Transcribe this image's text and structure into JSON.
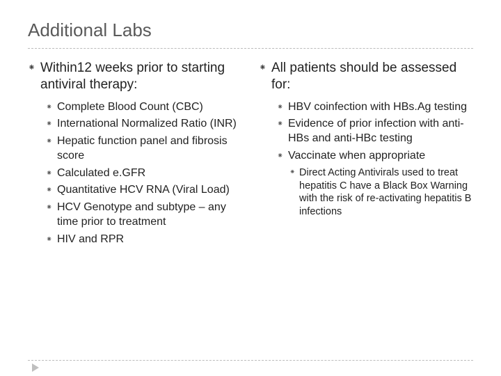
{
  "title": "Additional Labs",
  "bullet_glyph": "⁕",
  "columns": {
    "left": {
      "lead": "Within12 weeks prior to starting antiviral therapy:",
      "items": [
        "Complete Blood Count (CBC)",
        "International Normalized Ratio (INR)",
        "Hepatic function panel and fibrosis score",
        "Calculated e.GFR",
        "Quantitative HCV RNA (Viral Load)",
        "HCV Genotype and subtype – any time prior to treatment",
        "HIV and RPR"
      ]
    },
    "right": {
      "lead": "All patients should be assessed for:",
      "items": [
        "HBV coinfection with HBs.Ag testing",
        "Evidence of prior infection with anti-HBs and anti-HBc testing",
        "Vaccinate when appropriate"
      ],
      "subitems": [
        "Direct Acting Antivirals used to treat hepatitis C have a Black Box Warning with the risk of re-activating hepatitis B infections"
      ]
    }
  },
  "colors": {
    "title": "#5a5a5a",
    "text": "#222222",
    "dash": "#bbbbbb",
    "arrow": "#bfbfbf",
    "background": "#ffffff"
  },
  "fonts": {
    "title_size": 26,
    "lead_size": 19,
    "item_size": 16,
    "subitem_size": 14.5
  }
}
